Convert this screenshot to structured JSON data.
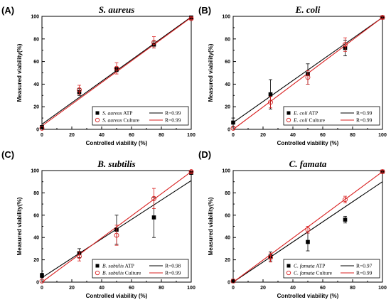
{
  "chart_data": [
    {
      "type": "scatter",
      "panel_label": "(A)",
      "title": "S. aureus",
      "xlabel": "Controlled viability (%)",
      "ylabel": "Measured viability(%)",
      "xlim": [
        0,
        100
      ],
      "ylim": [
        0,
        100
      ],
      "xticks": [
        "0",
        "20",
        "40",
        "60",
        "80",
        "100"
      ],
      "yticks": [
        "0",
        "20",
        "40",
        "60",
        "80",
        "100"
      ],
      "legend_position": "bottom-right",
      "series": [
        {
          "name": "ATP",
          "species": "S. aureus",
          "marker": "filled-square",
          "line_color": "#000000",
          "x": [
            0,
            25,
            50,
            75,
            100
          ],
          "y": [
            2,
            33,
            53,
            75,
            99
          ],
          "err": [
            0,
            3,
            2,
            3,
            1
          ],
          "fit": [
            4.5,
            99.5
          ],
          "r_label": "R=0.99"
        },
        {
          "name": "Culture",
          "species": "S. aureus",
          "marker": "open-circle",
          "line_color": "#d92020",
          "x": [
            0,
            25,
            50,
            75,
            100
          ],
          "y": [
            1,
            35,
            54,
            77,
            98
          ],
          "err": [
            0,
            4,
            5,
            5,
            1
          ],
          "fit": [
            3,
            99
          ],
          "r_label": "R=0.99"
        }
      ]
    },
    {
      "type": "scatter",
      "panel_label": "(B)",
      "title": "E. coli",
      "xlabel": "Controlled viability (%)",
      "ylabel": "Measured viability(%)",
      "xlim": [
        0,
        100
      ],
      "ylim": [
        0,
        100
      ],
      "xticks": [
        "0",
        "20",
        "40",
        "60",
        "80",
        "100"
      ],
      "yticks": [
        "0",
        "20",
        "40",
        "60",
        "80",
        "100"
      ],
      "legend_position": "bottom-right",
      "series": [
        {
          "name": "ATP",
          "species": "E. coli",
          "marker": "filled-square",
          "line_color": "#000000",
          "x": [
            0,
            25,
            50,
            75,
            100
          ],
          "y": [
            6,
            31,
            49,
            72,
            99
          ],
          "err": [
            4,
            13,
            9,
            7,
            1
          ],
          "fit": [
            6,
            99
          ],
          "r_label": "R=0.99"
        },
        {
          "name": "Culture",
          "species": "E. coli",
          "marker": "open-circle",
          "line_color": "#d92020",
          "x": [
            0,
            25,
            50,
            75,
            100
          ],
          "y": [
            1,
            24,
            46,
            75,
            99
          ],
          "err": [
            0,
            5,
            6,
            6,
            1
          ],
          "fit": [
            0,
            99
          ],
          "r_label": "R=0.99"
        }
      ]
    },
    {
      "type": "scatter",
      "panel_label": "(C)",
      "title": "B. subtilis",
      "xlabel": "Controlled viability (%)",
      "ylabel": "Measured viability(%)",
      "xlim": [
        0,
        100
      ],
      "ylim": [
        0,
        100
      ],
      "xticks": [
        "0",
        "20",
        "40",
        "60",
        "80",
        "100"
      ],
      "yticks": [
        "0",
        "20",
        "40",
        "60",
        "80",
        "100"
      ],
      "legend_position": "bottom-right",
      "series": [
        {
          "name": "ATP",
          "species": "B. subtilis",
          "marker": "filled-square",
          "line_color": "#000000",
          "x": [
            0,
            25,
            50,
            75,
            100
          ],
          "y": [
            6,
            26,
            47,
            58,
            98
          ],
          "err": [
            2,
            4,
            13,
            18,
            1
          ],
          "fit": [
            4,
            91
          ],
          "r_label": "R=0.98"
        },
        {
          "name": "Culture",
          "species": "B. subtilis",
          "marker": "open-circle",
          "line_color": "#d92020",
          "x": [
            0,
            25,
            50,
            75,
            100
          ],
          "y": [
            1,
            23,
            42,
            75,
            99
          ],
          "err": [
            0,
            4,
            9,
            9,
            1
          ],
          "fit": [
            0,
            99
          ],
          "r_label": "R=0.99"
        }
      ]
    },
    {
      "type": "scatter",
      "panel_label": "(D)",
      "title": "C. famata",
      "xlabel": "Controlled viability (%)",
      "ylabel": "Measured viability(%)",
      "xlim": [
        0,
        100
      ],
      "ylim": [
        0,
        100
      ],
      "xticks": [
        "0",
        "20",
        "40",
        "60",
        "80",
        "100"
      ],
      "yticks": [
        "0",
        "20",
        "40",
        "60",
        "80",
        "100"
      ],
      "legend_position": "bottom-right",
      "series": [
        {
          "name": "ATP",
          "species": "C. famata",
          "marker": "filled-square",
          "line_color": "#000000",
          "x": [
            0,
            25,
            50,
            75,
            100
          ],
          "y": [
            1,
            23,
            36,
            56,
            99
          ],
          "err": [
            0,
            4,
            8,
            3,
            1
          ],
          "fit": [
            0,
            90
          ],
          "r_label": "R=0.97"
        },
        {
          "name": "Culture",
          "species": "C. famata",
          "marker": "open-circle",
          "line_color": "#d92020",
          "x": [
            0,
            25,
            50,
            75,
            100
          ],
          "y": [
            1,
            22,
            47,
            74,
            99
          ],
          "err": [
            0,
            4,
            3,
            3,
            1
          ],
          "fit": [
            0,
            99
          ],
          "r_label": "R=0.99"
        }
      ]
    }
  ]
}
